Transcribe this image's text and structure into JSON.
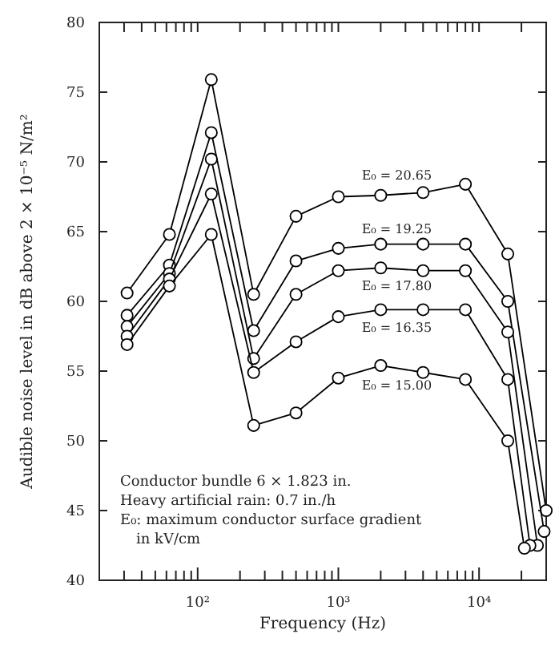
{
  "chart_data": {
    "type": "line",
    "xlabel": "Frequency (Hz)",
    "ylabel": "Audible noise level in dB above 2 × 10⁻⁵ N/m²",
    "log": "x",
    "marker": "circle",
    "grid": false,
    "xlim": [
      20,
      30000
    ],
    "ylim": [
      40,
      80
    ],
    "xticks": [
      {
        "value": 30,
        "label": null
      },
      {
        "value": 40,
        "label": null
      },
      {
        "value": 50,
        "label": null
      },
      {
        "value": 60,
        "label": null
      },
      {
        "value": 70,
        "label": null
      },
      {
        "value": 80,
        "label": null
      },
      {
        "value": 90,
        "label": null
      },
      {
        "value": 100,
        "label": "10²"
      },
      {
        "value": 200,
        "label": null
      },
      {
        "value": 300,
        "label": null
      },
      {
        "value": 400,
        "label": null
      },
      {
        "value": 500,
        "label": null
      },
      {
        "value": 600,
        "label": null
      },
      {
        "value": 700,
        "label": null
      },
      {
        "value": 800,
        "label": null
      },
      {
        "value": 900,
        "label": null
      },
      {
        "value": 1000,
        "label": "10³"
      },
      {
        "value": 2000,
        "label": null
      },
      {
        "value": 3000,
        "label": null
      },
      {
        "value": 4000,
        "label": null
      },
      {
        "value": 5000,
        "label": null
      },
      {
        "value": 6000,
        "label": null
      },
      {
        "value": 7000,
        "label": null
      },
      {
        "value": 8000,
        "label": null
      },
      {
        "value": 9000,
        "label": null
      },
      {
        "value": 10000,
        "label": "10⁴"
      },
      {
        "value": 20000,
        "label": null
      }
    ],
    "yticks": [
      40,
      45,
      50,
      55,
      60,
      65,
      70,
      75,
      80
    ],
    "series": [
      {
        "name": "E₀ = 20.65",
        "color": "#000000",
        "x": [
          31.5,
          63,
          125,
          250,
          500,
          1000,
          2000,
          4000,
          8000,
          16000,
          30000
        ],
        "values": [
          60.6,
          64.8,
          75.9,
          60.5,
          66.1,
          67.5,
          67.6,
          67.8,
          68.4,
          63.4,
          45
        ]
      },
      {
        "name": "E₀ = 19.25",
        "color": "#000000",
        "x": [
          31.5,
          63,
          125,
          250,
          500,
          1000,
          2000,
          4000,
          8000,
          16000,
          29000
        ],
        "values": [
          59.0,
          62.6,
          72.1,
          57.9,
          62.9,
          63.8,
          64.1,
          64.1,
          64.1,
          60.0,
          43.5
        ]
      },
      {
        "name": "E₀ = 17.80",
        "color": "#000000",
        "x": [
          31.5,
          63,
          125,
          250,
          500,
          1000,
          2000,
          4000,
          8000,
          16000,
          26000
        ],
        "values": [
          58.2,
          62.0,
          70.2,
          55.9,
          60.5,
          62.2,
          62.4,
          62.2,
          62.2,
          57.8,
          42.5
        ]
      },
      {
        "name": "E₀ = 16.35",
        "color": "#000000",
        "x": [
          31.5,
          63,
          125,
          250,
          500,
          1000,
          2000,
          4000,
          8000,
          16000,
          23000
        ],
        "values": [
          57.5,
          61.6,
          67.7,
          54.9,
          57.1,
          58.9,
          59.4,
          59.4,
          59.4,
          54.4,
          42.5
        ]
      },
      {
        "name": "E₀ = 15.00",
        "color": "#000000",
        "x": [
          31.5,
          63,
          125,
          250,
          500,
          1000,
          2000,
          4000,
          8000,
          16000,
          21000
        ],
        "values": [
          56.9,
          61.1,
          64.8,
          51.1,
          52.0,
          54.5,
          55.4,
          54.9,
          54.4,
          50.0,
          42.3
        ]
      }
    ],
    "annotations": [
      "Conductor bundle 6 × 1.823 in.",
      "Heavy artificial rain: 0.7 in./h",
      "E₀: maximum conductor surface gradient in kV/cm"
    ]
  }
}
